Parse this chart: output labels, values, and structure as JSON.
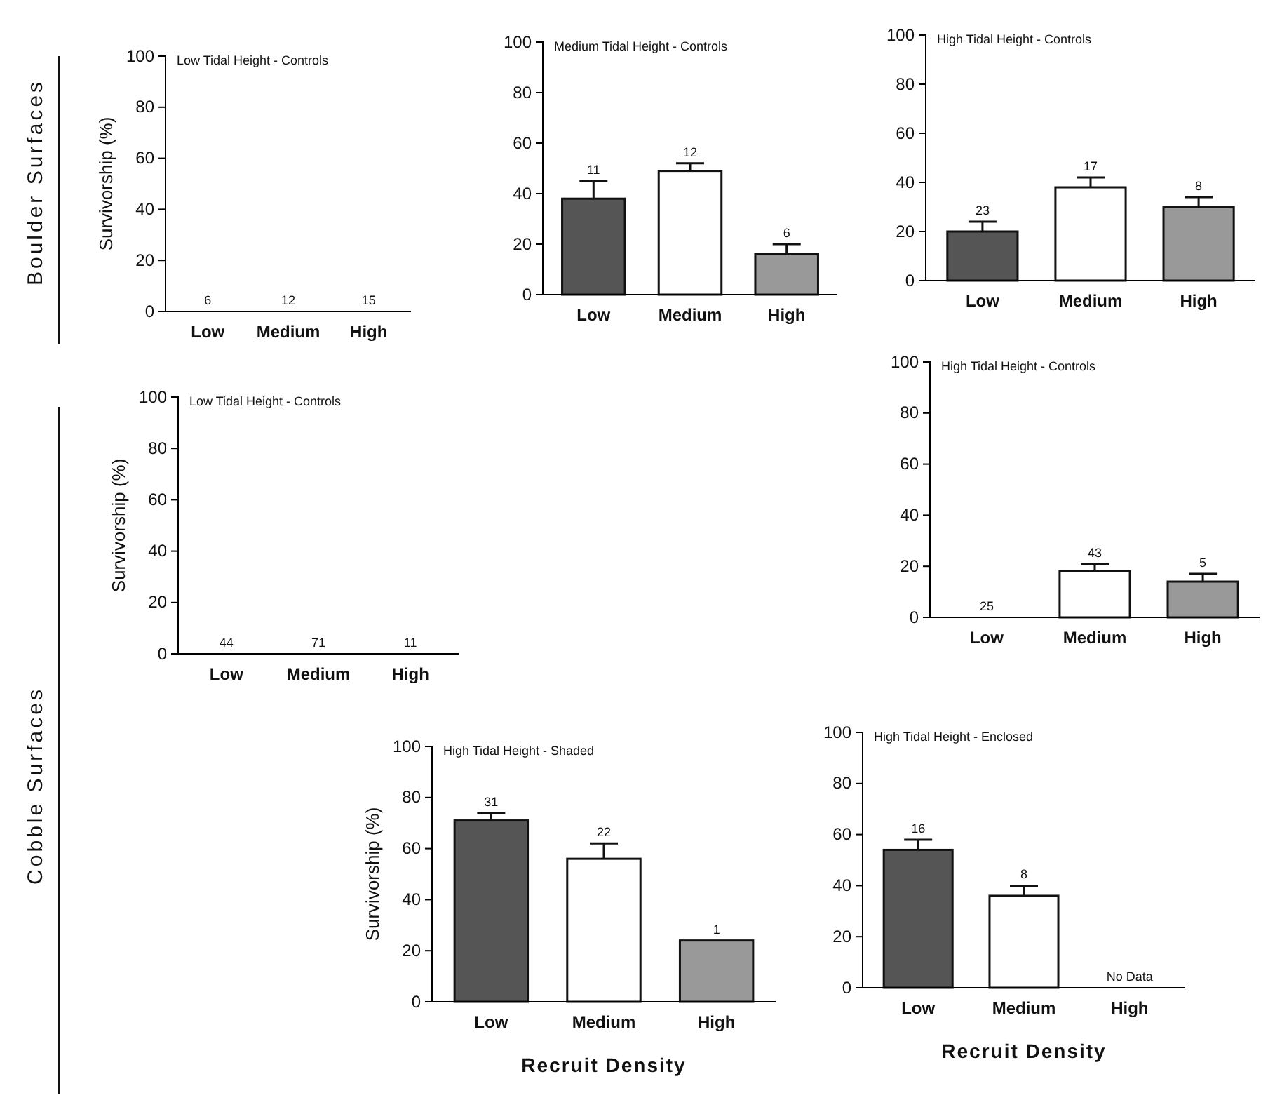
{
  "chart_data": [
    {
      "type": "bar",
      "title": "Low Tidal Height - Controls",
      "ylabel": "Survivorship (%)",
      "categories": [
        "Low",
        "Medium",
        "High"
      ],
      "values": [
        0,
        0,
        0
      ],
      "colors": [
        "#555555",
        "#ffffff",
        "#999999"
      ],
      "ylim": [
        0,
        100
      ],
      "yticks": [
        0,
        20,
        40,
        60,
        80,
        100
      ],
      "annotations": [
        "Boulder Surfaces",
        {
          "text": "6",
          "x": "Low",
          "y": 0
        },
        {
          "text": "12",
          "x": "Medium",
          "y": 0
        },
        {
          "text": "15",
          "x": "High",
          "y": 0
        }
      ]
    },
    {
      "type": "bar",
      "title": "Medium Tidal Height - Controls",
      "categories": [
        "Low",
        "Medium",
        "High"
      ],
      "values": [
        38,
        49,
        16
      ],
      "errors": [
        [
          38,
          45
        ],
        [
          49,
          52
        ],
        [
          16,
          20
        ]
      ],
      "colors": [
        "#555555",
        "#ffffff",
        "#999999"
      ],
      "ylim": [
        0,
        100
      ],
      "yticks": [
        0,
        20,
        40,
        60,
        80,
        100
      ],
      "annotations": [
        {
          "text": "11",
          "x": "Low",
          "y": 45
        },
        {
          "text": "12",
          "x": "Medium",
          "y": 52
        },
        {
          "text": "6",
          "x": "High",
          "y": 20
        }
      ]
    },
    {
      "type": "bar",
      "title": "High Tidal Height - Controls",
      "categories": [
        "Low",
        "Medium",
        "High"
      ],
      "values": [
        20,
        38,
        30
      ],
      "errors": [
        [
          20,
          24
        ],
        [
          38,
          42
        ],
        [
          30,
          34
        ]
      ],
      "colors": [
        "#555555",
        "#ffffff",
        "#999999"
      ],
      "ylim": [
        0,
        100
      ],
      "yticks": [
        0,
        20,
        40,
        60,
        80,
        100
      ],
      "annotations": [
        {
          "text": "23",
          "x": "Low",
          "y": 24
        },
        {
          "text": "17",
          "x": "Medium",
          "y": 42
        },
        {
          "text": "8",
          "x": "High",
          "y": 34
        }
      ]
    },
    {
      "type": "bar",
      "title": "Low Tidal Height - Controls",
      "ylabel": "Survivorship (%)",
      "categories": [
        "Low",
        "Medium",
        "High"
      ],
      "values": [
        0,
        0,
        0
      ],
      "colors": [
        "#555555",
        "#ffffff",
        "#999999"
      ],
      "ylim": [
        0,
        100
      ],
      "yticks": [
        0,
        20,
        40,
        60,
        80,
        100
      ],
      "annotations": [
        "Cobble Surfaces",
        {
          "text": "44",
          "x": "Low",
          "y": 0
        },
        {
          "text": "71",
          "x": "Medium",
          "y": 0
        },
        {
          "text": "11",
          "x": "High",
          "y": 0
        }
      ]
    },
    {
      "type": "bar",
      "title": "High Tidal Height - Controls",
      "categories": [
        "Low",
        "Medium",
        "High"
      ],
      "values": [
        0,
        18,
        14
      ],
      "errors": [
        null,
        [
          18,
          21
        ],
        [
          14,
          17
        ]
      ],
      "colors": [
        "#555555",
        "#ffffff",
        "#999999"
      ],
      "ylim": [
        0,
        100
      ],
      "yticks": [
        0,
        20,
        40,
        60,
        80,
        100
      ],
      "annotations": [
        {
          "text": "25",
          "x": "Low",
          "y": 0
        },
        {
          "text": "43",
          "x": "Medium",
          "y": 21
        },
        {
          "text": "5",
          "x": "High",
          "y": 17
        }
      ]
    },
    {
      "type": "bar",
      "title": "High Tidal Height - Shaded",
      "ylabel": "Survivorship (%)",
      "xlabel": "Recruit Density",
      "categories": [
        "Low",
        "Medium",
        "High"
      ],
      "values": [
        71,
        56,
        24
      ],
      "errors": [
        [
          71,
          74
        ],
        [
          56,
          62
        ],
        null
      ],
      "colors": [
        "#555555",
        "#ffffff",
        "#999999"
      ],
      "ylim": [
        0,
        100
      ],
      "yticks": [
        0,
        20,
        40,
        60,
        80,
        100
      ],
      "annotations": [
        {
          "text": "31",
          "x": "Low",
          "y": 74
        },
        {
          "text": "22",
          "x": "Medium",
          "y": 62
        },
        {
          "text": "1",
          "x": "High",
          "y": 24
        }
      ]
    },
    {
      "type": "bar",
      "title": "High Tidal Height - Enclosed",
      "xlabel": "Recruit Density",
      "categories": [
        "Low",
        "Medium",
        "High"
      ],
      "values": [
        54,
        36,
        null
      ],
      "errors": [
        [
          54,
          58
        ],
        [
          36,
          40
        ],
        null
      ],
      "colors": [
        "#555555",
        "#ffffff",
        null
      ],
      "ylim": [
        0,
        100
      ],
      "yticks": [
        0,
        20,
        40,
        60,
        80,
        100
      ],
      "annotations": [
        {
          "text": "16",
          "x": "Low",
          "y": 58
        },
        {
          "text": "8",
          "x": "Medium",
          "y": 40
        },
        "No Data"
      ]
    }
  ]
}
